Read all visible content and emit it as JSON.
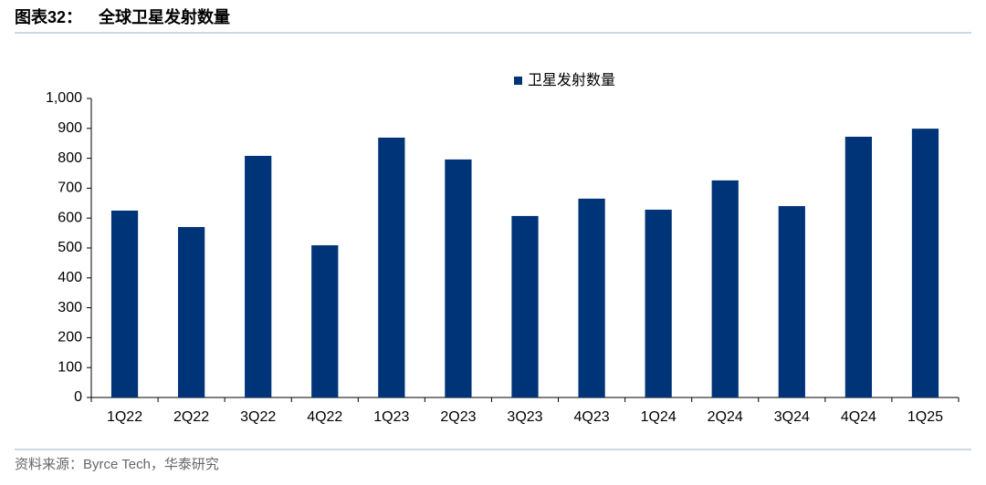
{
  "header": {
    "label": "图表32：",
    "title": "全球卫星发射数量"
  },
  "chart_data": {
    "type": "bar",
    "categories": [
      "1Q22",
      "2Q22",
      "3Q22",
      "4Q22",
      "1Q23",
      "2Q23",
      "3Q23",
      "4Q23",
      "1Q24",
      "2Q24",
      "3Q24",
      "4Q24",
      "1Q25"
    ],
    "series": [
      {
        "name": "卫星发射数量",
        "color": "#003478",
        "values": [
          625,
          570,
          808,
          509,
          869,
          796,
          607,
          665,
          628,
          726,
          640,
          872,
          899
        ]
      }
    ],
    "ylim": [
      0,
      1000
    ],
    "yticks": [
      0,
      100,
      200,
      300,
      400,
      500,
      600,
      700,
      800,
      900,
      {
        "value": 1000,
        "label": "1,000"
      }
    ],
    "grid": false
  },
  "footer": {
    "source": "资料来源：Byrce Tech，华泰研究"
  }
}
